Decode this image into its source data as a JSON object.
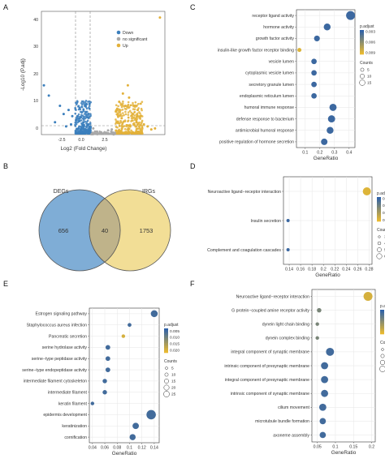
{
  "panels": {
    "A": "A",
    "B": "B",
    "C": "C",
    "D": "D",
    "E": "E",
    "F": "F"
  },
  "colors": {
    "down": "#3b7fbd",
    "nosig": "#a8a8a8",
    "up": "#e3b13a",
    "venn_left": "#7fadd6",
    "venn_right": "#f2de96",
    "venn_overlap": "#bfb38a",
    "padj_low": "#2f62a8",
    "padj_high": "#e8b931"
  },
  "volcano": {
    "ylabel": "-Log10 (P.adj)",
    "xlabel": "Log2 (Fold Change)",
    "legend": [
      "Down",
      "no significant",
      "Up"
    ],
    "x_ticks": [
      "-2.5",
      "0.0",
      "2.5"
    ],
    "y_ticks": [
      "0",
      "10",
      "20",
      "30",
      "40"
    ]
  },
  "venn": {
    "left_label": "DEGs",
    "right_label": "IRGs",
    "left_only": "656",
    "overlap": "40",
    "right_only": "1753"
  },
  "chart_data": [
    {
      "panel": "A",
      "type": "scatter",
      "xlabel": "Log2 (Fold Change)",
      "ylabel": "-Log10 (P.adj)",
      "xlim": [
        -5,
        5
      ],
      "ylim": [
        0,
        60
      ],
      "threshold_x": [
        -1,
        1
      ],
      "series": [
        {
          "name": "Down",
          "points": [
            [
              -4.8,
              24
            ],
            [
              -4.4,
              19
            ],
            [
              -3.9,
              6
            ],
            [
              -3.5,
              14
            ],
            [
              -3.2,
              10
            ],
            [
              -2.8,
              12
            ],
            [
              -2.5,
              9
            ],
            [
              -2.2,
              7
            ],
            [
              -1.9,
              13
            ],
            [
              -1.6,
              6
            ],
            [
              -1.4,
              11
            ],
            [
              -1.2,
              5
            ],
            [
              -1.1,
              15
            ],
            [
              -3.0,
              4
            ],
            [
              -2.0,
              3
            ],
            [
              -1.5,
              2.5
            ],
            [
              -2.6,
              5
            ],
            [
              -1.8,
              8.5
            ]
          ]
        },
        {
          "name": "no significant",
          "points": [
            [
              -0.8,
              3
            ],
            [
              -0.5,
              1.5
            ],
            [
              -0.2,
              0.8
            ],
            [
              0.1,
              1
            ],
            [
              0.4,
              2
            ],
            [
              0.7,
              2.5
            ],
            [
              -0.6,
              0.5
            ],
            [
              0.3,
              0.4
            ]
          ]
        },
        {
          "name": "Up",
          "points": [
            [
              1.1,
              12
            ],
            [
              1.3,
              16
            ],
            [
              1.5,
              8
            ],
            [
              1.8,
              14
            ],
            [
              2.1,
              18
            ],
            [
              2.4,
              10
            ],
            [
              2.7,
              6
            ],
            [
              3.0,
              9
            ],
            [
              3.3,
              5
            ],
            [
              3.6,
              4
            ],
            [
              4.2,
              3
            ],
            [
              2.0,
              24
            ],
            [
              3.9,
              2.5
            ],
            [
              1.6,
              20
            ],
            [
              2.8,
              12
            ],
            [
              4.6,
              57
            ]
          ]
        }
      ]
    },
    {
      "panel": "C",
      "type": "scatter",
      "xlabel": "GeneRatio",
      "x_ticks": [
        0.1,
        0.2,
        0.3,
        0.4
      ],
      "xlim": [
        0.04,
        0.44
      ],
      "categories": [
        "receptor ligand activity",
        "hormone activity",
        "growth factor activity",
        "insulin-like growth factor receptor binding",
        "vesicle lumen",
        "cytoplasmic vesicle lumen",
        "secretory granule lumen",
        "endoplasmic reticulum lumen",
        "humoral immune response",
        "defense response to bacterium",
        "antimicrobial humoral response",
        "positive regulation of hormone secretion"
      ],
      "values": [
        0.41,
        0.25,
        0.18,
        0.06,
        0.16,
        0.16,
        0.16,
        0.16,
        0.29,
        0.28,
        0.27,
        0.23
      ],
      "counts": [
        16,
        10,
        7,
        2,
        6,
        6,
        6,
        6,
        11,
        11,
        10,
        9
      ],
      "padj": [
        0.003,
        0.003,
        0.003,
        0.009,
        0.003,
        0.003,
        0.003,
        0.003,
        0.003,
        0.003,
        0.003,
        0.003
      ],
      "legend": {
        "color_title": "p.adjust",
        "color_ticks": [
          "0.009",
          "0.006",
          "0.003"
        ],
        "color_range": [
          0.0025,
          0.0095
        ],
        "size_title": "Counts",
        "size_ticks": [
          "5",
          "10",
          "15"
        ]
      }
    },
    {
      "panel": "D",
      "type": "scatter",
      "xlabel": "GeneRatio",
      "x_ticks": [
        0.14,
        0.16,
        0.18,
        0.2,
        0.22,
        0.24,
        0.26,
        0.28
      ],
      "xlim": [
        0.13,
        0.285
      ],
      "categories": [
        "Neuroactive ligand−receptor interaction",
        "Insulin secretion",
        "Complement and coagulation cascades"
      ],
      "values": [
        0.276,
        0.138,
        0.138
      ],
      "counts": [
        6,
        3,
        3
      ],
      "padj": [
        0.02,
        0.005,
        0.005
      ],
      "legend": {
        "color_title": "p.adjust",
        "color_ticks": [
          "0.005",
          "0.010",
          "0.015",
          "0.020"
        ],
        "color_range": [
          0.004,
          0.021
        ],
        "size_title": "Counts",
        "size_ticks": [
          "3",
          "4",
          "5",
          "6"
        ]
      }
    },
    {
      "panel": "E",
      "type": "scatter",
      "xlabel": "GeneRatio",
      "x_ticks": [
        0.04,
        0.06,
        0.08,
        0.1,
        0.12,
        0.14
      ],
      "xlim": [
        0.035,
        0.148
      ],
      "categories": [
        "Estrogen signaling pathway",
        "Staphylococcus aureus infection",
        "Pancreatic secretion",
        "serine hydrolase activity",
        "serine−type peptidase activity",
        "serine−type endopeptidase activity",
        "intermediate filament cytoskeleton",
        "intermediate filament",
        "keratin filament",
        "epidermis development",
        "keratinization",
        "cornification"
      ],
      "values": [
        0.14,
        0.1,
        0.09,
        0.065,
        0.065,
        0.065,
        0.06,
        0.06,
        0.04,
        0.135,
        0.11,
        0.105
      ],
      "counts": [
        16,
        5,
        4,
        8,
        8,
        8,
        7,
        7,
        4,
        25,
        14,
        13
      ],
      "padj": [
        0.005,
        0.005,
        0.02,
        0.005,
        0.005,
        0.005,
        0.005,
        0.005,
        0.005,
        0.005,
        0.005,
        0.005
      ],
      "legend": {
        "color_title": "p.adjust",
        "color_ticks": [
          "0.020",
          "0.015",
          "0.010",
          "0.005"
        ],
        "color_range": [
          0.003,
          0.022
        ],
        "size_title": "Counts",
        "size_ticks": [
          "5",
          "10",
          "15",
          "20",
          "25"
        ]
      }
    },
    {
      "panel": "F",
      "type": "scatter",
      "xlabel": "GeneRatio",
      "x_ticks": [
        0.05,
        0.1,
        0.15,
        0.2
      ],
      "xlim": [
        0.035,
        0.21
      ],
      "categories": [
        "Neuroactive ligand−receptor interaction",
        "G protein−coupled amine receptor activity",
        "dynein light chain binding",
        "dynein complex binding",
        "integral component of synaptic membrane",
        "intrinsic component of presynaptic membrane",
        "integral component of presynaptic membrane",
        "intrinsic component of synaptic membrane",
        "cilium movement",
        "microtubule bundle formation",
        "axoneme assembly"
      ],
      "values": [
        0.19,
        0.055,
        0.05,
        0.05,
        0.085,
        0.07,
        0.07,
        0.07,
        0.065,
        0.065,
        0.065
      ],
      "counts": [
        8,
        3,
        2,
        2,
        7,
        6,
        6,
        6,
        6,
        5,
        5
      ],
      "padj": [
        0.06,
        0.035,
        0.035,
        0.035,
        0.02,
        0.02,
        0.02,
        0.02,
        0.02,
        0.02,
        0.02
      ],
      "legend": {
        "color_title": "p.adjust",
        "color_ticks": [
          "0.06",
          "0.05",
          "0.04",
          "0.03",
          "0.02"
        ],
        "color_range": [
          0.015,
          0.065
        ],
        "size_title": "Counts",
        "size_ticks": [
          "2",
          "4",
          "6",
          "8"
        ]
      }
    }
  ]
}
